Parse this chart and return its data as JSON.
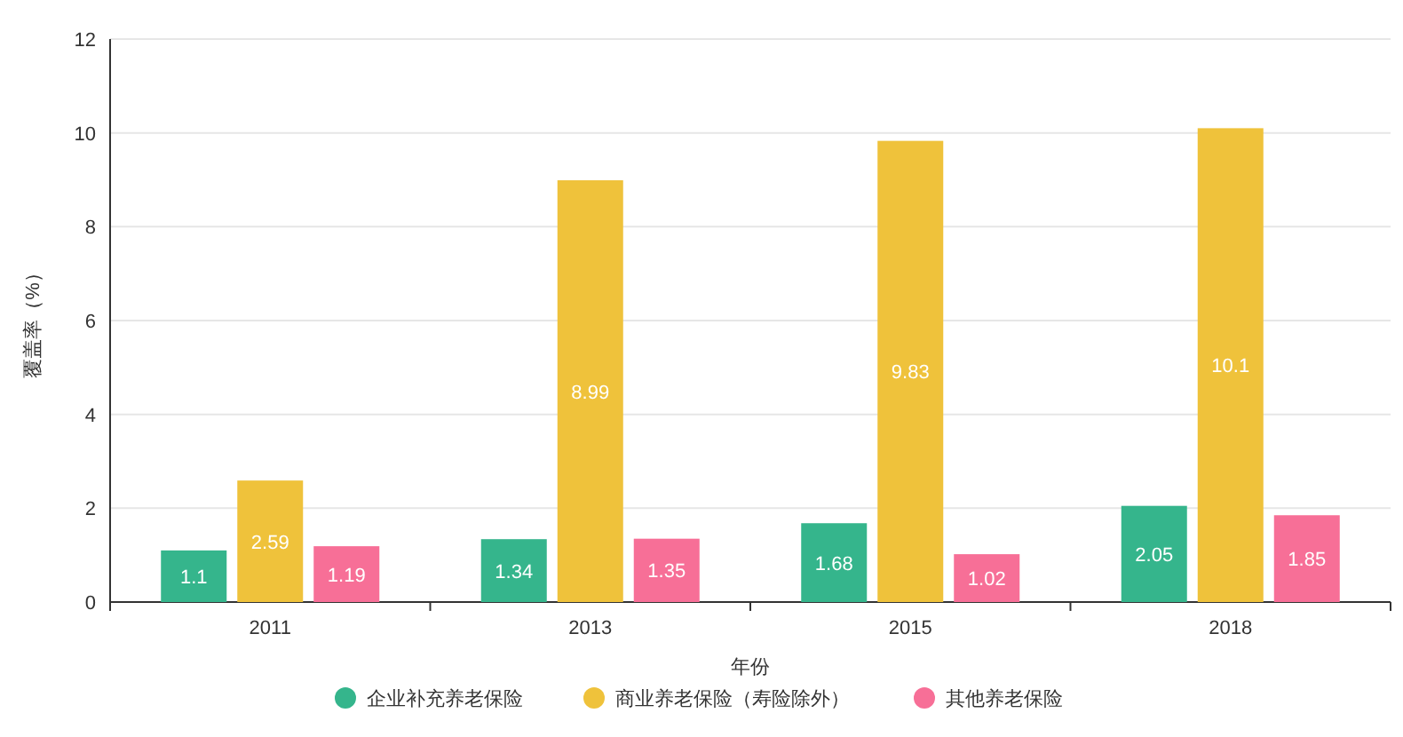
{
  "chart_data": {
    "type": "bar",
    "xlabel": "年份",
    "ylabel": "覆盖率（%）",
    "categories": [
      "2011",
      "2013",
      "2015",
      "2018"
    ],
    "series": [
      {
        "name": "企业补充养老保险",
        "color": "#35b58c",
        "values": [
          1.1,
          1.34,
          1.68,
          2.05
        ]
      },
      {
        "name": "商业养老保险（寿险除外）",
        "color": "#efc23b",
        "values": [
          2.59,
          8.99,
          9.83,
          10.1
        ]
      },
      {
        "name": "其他养老保险",
        "color": "#f76f97",
        "values": [
          1.19,
          1.35,
          1.02,
          1.85
        ]
      }
    ],
    "ylim": [
      0,
      12
    ],
    "yticks": [
      0,
      2,
      4,
      6,
      8,
      10,
      12
    ],
    "grid": "y",
    "legend": "bottom",
    "data_labels": true
  }
}
